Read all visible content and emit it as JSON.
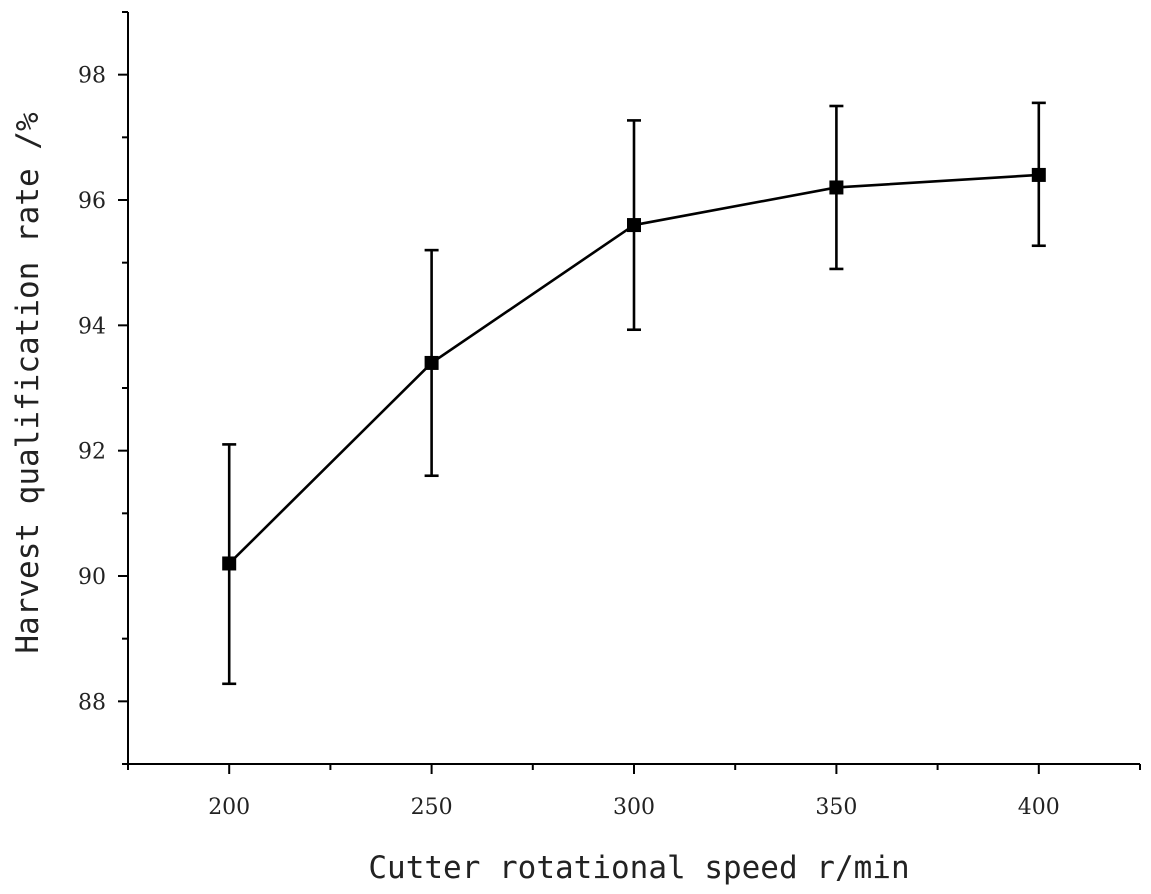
{
  "chart_data": {
    "type": "line",
    "title": "",
    "xlabel": "Cutter rotational speed r/min",
    "ylabel": "Harvest qualification rate /%",
    "xlim": [
      175,
      425
    ],
    "ylim": [
      87,
      99
    ],
    "x_ticks_major": [
      200,
      250,
      300,
      350,
      400
    ],
    "x_tick_labels": [
      "200",
      "250",
      "300",
      "350",
      "400"
    ],
    "x_ticks_minor": [
      175,
      225,
      275,
      325,
      375,
      425
    ],
    "y_ticks_major": [
      88,
      90,
      92,
      94,
      96,
      98
    ],
    "y_tick_labels": [
      "88",
      "90",
      "92",
      "94",
      "96",
      "98"
    ],
    "y_ticks_minor": [
      87,
      89,
      91,
      93,
      95,
      97,
      99
    ],
    "grid": false,
    "legend": "none",
    "series": [
      {
        "marker": "square",
        "color": "#000000",
        "x": [
          200,
          250,
          300,
          350,
          400
        ],
        "y": [
          90.2,
          93.4,
          95.6,
          96.2,
          96.4
        ],
        "err_low": [
          88.28,
          91.6,
          93.93,
          94.9,
          95.27
        ],
        "err_high": [
          92.1,
          95.2,
          97.27,
          97.5,
          97.55
        ]
      }
    ]
  }
}
